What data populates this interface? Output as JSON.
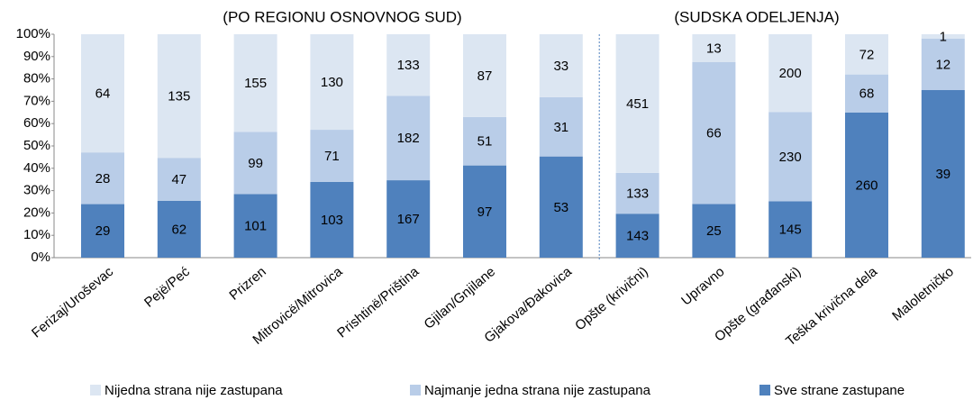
{
  "chart_data": {
    "type": "stacked_percent_bar",
    "annotations": [
      "(PO REGIONU OSNOVNOG SUD)",
      "(SUDSKA ODELJENJA)"
    ],
    "categories": [
      "Ferizaj/Uroševac",
      "Pejë/Peć",
      "Prizren",
      "Mitrovicë/Mitrovica",
      "Prishtinë/Priština",
      "Gjilan/Gnjilane",
      "Gjakova/Đakovica",
      "Opšte (krivični)",
      "Upravno",
      "Opšte (građanski)",
      "Teška krivična dela",
      "Maloletničko"
    ],
    "series": [
      {
        "name": "Sve strane zastupane",
        "color": "#4f81bd",
        "values": [
          29,
          62,
          101,
          103,
          167,
          97,
          53,
          143,
          25,
          145,
          260,
          39
        ]
      },
      {
        "name": "Najmanje jedna strana nije zastupana",
        "color": "#b9cde8",
        "values": [
          28,
          47,
          99,
          71,
          182,
          51,
          31,
          133,
          66,
          230,
          68,
          12
        ]
      },
      {
        "name": "Nijedna strana nije zastupana",
        "color": "#dce6f2",
        "values": [
          64,
          135,
          155,
          130,
          133,
          87,
          33,
          451,
          13,
          200,
          72,
          1
        ]
      }
    ],
    "ylim": [
      0,
      100
    ],
    "yticks": [
      {
        "value": 0,
        "label": "0%"
      },
      {
        "value": 10,
        "label": "10%"
      },
      {
        "value": 20,
        "label": "20%"
      },
      {
        "value": 30,
        "label": "30%"
      },
      {
        "value": 40,
        "label": "40%"
      },
      {
        "value": 50,
        "label": "50%"
      },
      {
        "value": 60,
        "label": "60%"
      },
      {
        "value": 70,
        "label": "70%"
      },
      {
        "value": 80,
        "label": "80%"
      },
      {
        "value": 90,
        "label": "90%"
      },
      {
        "value": 100,
        "label": "100%"
      }
    ],
    "legend": "bottom"
  }
}
